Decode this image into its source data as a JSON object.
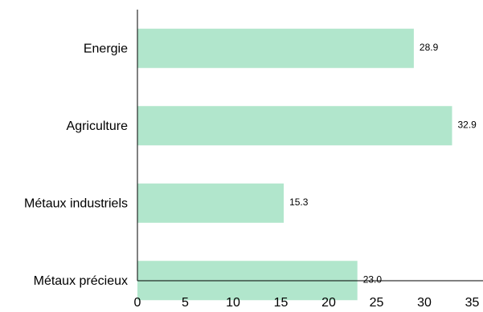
{
  "chart_data": {
    "type": "bar",
    "orientation": "horizontal",
    "categories": [
      "Energie",
      "Agriculture",
      "Métaux industriels",
      "Métaux précieux"
    ],
    "values": [
      28.9,
      32.9,
      15.3,
      23.0
    ],
    "value_labels": [
      "28.9",
      "32.9",
      "15.3",
      "23.0"
    ],
    "xlim": [
      0,
      35
    ],
    "x_ticks": [
      0,
      5,
      10,
      15,
      20,
      25,
      30,
      35
    ],
    "grid": false,
    "legend": "none",
    "bar_color": "#b1e6cc",
    "title": "",
    "xlabel": "",
    "ylabel": ""
  }
}
